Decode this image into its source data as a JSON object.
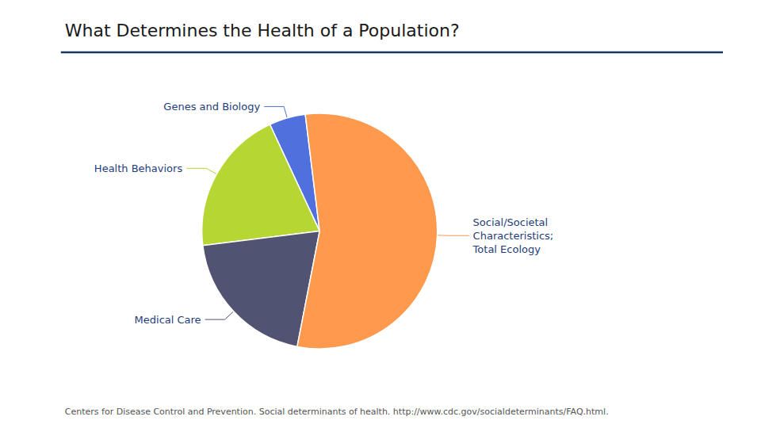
{
  "chart_data": {
    "type": "pie",
    "title": "What Determines the Health of a Population?",
    "categories": [
      "Genes and Biology",
      "Health Behaviors",
      "Medical Care",
      "Social/Societal\nCharacteristics;\nTotal Ecology"
    ],
    "values": [
      5,
      20,
      20,
      55
    ],
    "footnote": "Centers for Disease Control and Prevention. Social determinants of health. http://www.cdc.gov/socialdeterminants/FAQ.html.",
    "legend": false,
    "data_labels": false
  }
}
